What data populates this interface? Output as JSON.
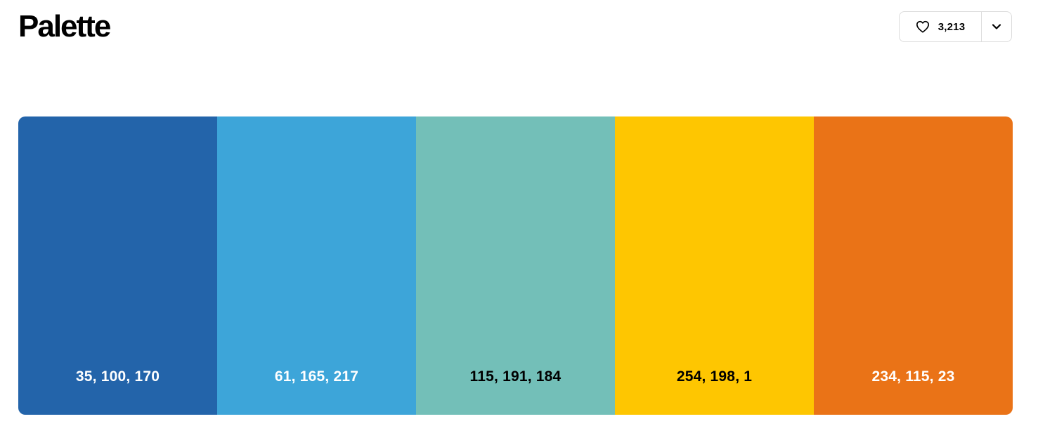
{
  "header": {
    "title": "Palette"
  },
  "like": {
    "count": "3,213",
    "icon": "heart-icon",
    "menu_icon": "chevron-down-icon"
  },
  "palette": {
    "swatches": [
      {
        "label": "35, 100, 170",
        "color": "#2364aa",
        "text_color": "#ffffff"
      },
      {
        "label": "61, 165, 217",
        "color": "#3da5d9",
        "text_color": "#ffffff"
      },
      {
        "label": "115, 191, 184",
        "color": "#73bfb8",
        "text_color": "#000000"
      },
      {
        "label": "254, 198, 1",
        "color": "#fec601",
        "text_color": "#000000"
      },
      {
        "label": "234, 115, 23",
        "color": "#ea7317",
        "text_color": "#ffffff"
      }
    ]
  }
}
